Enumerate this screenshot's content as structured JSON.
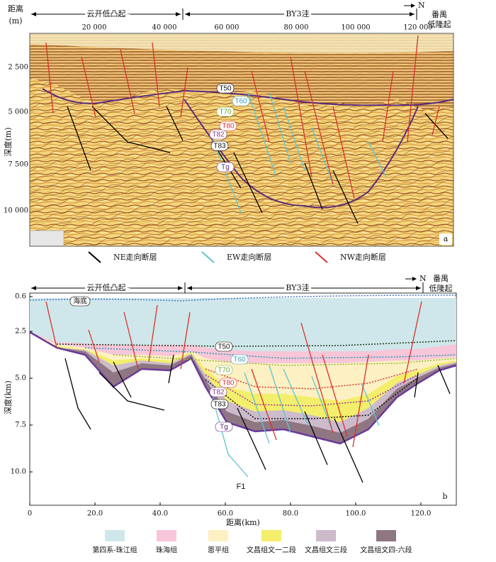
{
  "panel_a": {
    "distance_label": "距离",
    "distance_unit": "(m)",
    "regions": [
      "云开低凸起",
      "BY3洼"
    ],
    "north": "N",
    "region_right": [
      "番禺",
      "低隆起"
    ],
    "x_ticks": [
      "20 000",
      "40 000",
      "60 000",
      "80 000",
      "100 000",
      "120 000"
    ],
    "y_label": "深度(m)",
    "y_ticks": [
      "2 500",
      "5 000",
      "7 500",
      "10 000"
    ],
    "horizons": [
      "T50",
      "T60",
      "T70",
      "T80",
      "T82",
      "T83",
      "Tg"
    ],
    "panel_label": "a",
    "legend": [
      "NE走向断层",
      "EW走向断层",
      "NW走向断层"
    ]
  },
  "panel_b": {
    "regions": [
      "云开低凸起",
      "BY3洼"
    ],
    "north": "N",
    "region_right": [
      "番禺",
      "低隆起"
    ],
    "y_label": "深度(km)",
    "y_ticks": [
      "0.6",
      "2.5",
      "5.0",
      "7.5",
      "10.0"
    ],
    "x_label": "距离(km)",
    "x_ticks": [
      "0",
      "20.0",
      "40.0",
      "60.0",
      "80.0",
      "100.0",
      "120.0"
    ],
    "seafloor": "海底",
    "fault": "F1",
    "horizons": [
      "T50",
      "T60",
      "T70",
      "T80",
      "T82",
      "T83",
      "Tg"
    ],
    "panel_label": "b",
    "legend": [
      "第四系-珠江组",
      "珠海组",
      "恩平组",
      "文昌组文一二段",
      "文昌组文三段",
      "文昌组文四-六段"
    ]
  }
}
